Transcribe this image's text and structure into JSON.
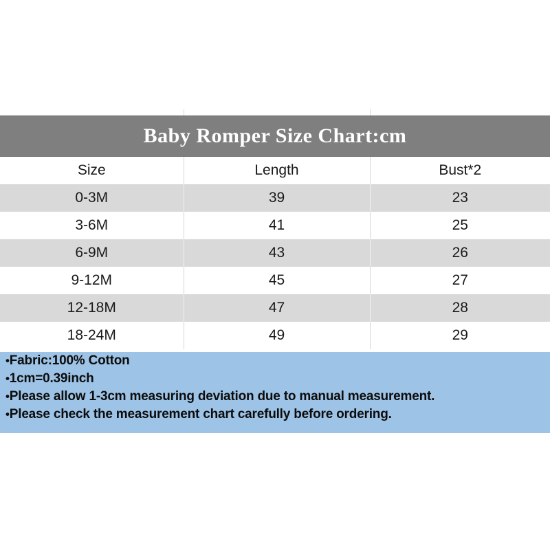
{
  "title": {
    "text": "Baby Romper Size Chart:cm",
    "background": "#7f7f7f",
    "text_color": "#ffffff"
  },
  "chart_data": {
    "type": "table",
    "title": "Baby Romper Size Chart:cm",
    "unit": "cm",
    "columns": [
      "Size",
      "Length",
      "Bust*2"
    ],
    "rows": [
      [
        "0-3M",
        "39",
        "23"
      ],
      [
        "3-6M",
        "41",
        "25"
      ],
      [
        "6-9M",
        "43",
        "26"
      ],
      [
        "9-12M",
        "45",
        "27"
      ],
      [
        "12-18M",
        "47",
        "28"
      ],
      [
        "18-24M",
        "49",
        "29"
      ]
    ],
    "layout_hints": {
      "alt_row_color": "#d9d9d9",
      "header_band_color": "#7f7f7f",
      "grid": "vertical-dividers-only"
    }
  },
  "notes": {
    "bullet": "•",
    "background": "#9dc3e6",
    "items": [
      "Fabric:100% Cotton",
      "1cm=0.39inch",
      "Please allow 1-3cm measuring deviation due to manual measurement.",
      "Please check the measurement chart carefully before ordering."
    ]
  }
}
